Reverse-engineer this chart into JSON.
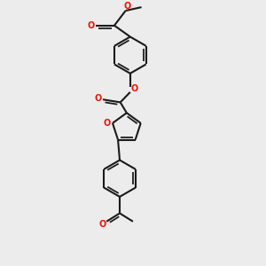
{
  "bg": "#ececec",
  "bond_color": "#1a1a1a",
  "oxygen_color": "#ee1100",
  "lw": 1.5,
  "dbo": 0.07,
  "fig_w": 3.0,
  "fig_h": 3.0,
  "dpi": 100,
  "xlim": [
    -1.5,
    1.5
  ],
  "ylim": [
    -4.2,
    3.2
  ]
}
